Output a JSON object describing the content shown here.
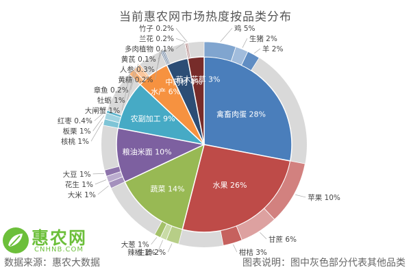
{
  "chart_data": {
    "type": "pie",
    "title": "当前惠农网市场热度按品类分布",
    "inner_ring": [
      {
        "label": "禽畜肉蛋 28%",
        "name": "禽畜肉蛋",
        "value": 28,
        "color": "#4a7ebb"
      },
      {
        "label": "水果 26%",
        "name": "水果",
        "value": 26,
        "color": "#be4b48"
      },
      {
        "label": "蔬菜 14%",
        "name": "蔬菜",
        "value": 14,
        "color": "#98b954"
      },
      {
        "label": "粮油米面 10%",
        "name": "粮油米面",
        "value": 10,
        "color": "#7d60a0"
      },
      {
        "label": "农副加工 9%",
        "name": "农副加工",
        "value": 9,
        "color": "#46aac5"
      },
      {
        "label": "水产 6%",
        "name": "水产",
        "value": 6,
        "color": "#f69240"
      },
      {
        "label": "中药材 4%",
        "name": "中药材",
        "value": 4,
        "color": "#2c4d75"
      },
      {
        "label": "苗木花草 3%",
        "name": "苗木花草",
        "value": 3,
        "color": "#772c2a"
      }
    ],
    "outer_ring": [
      {
        "label": "多肉植物 0.1%",
        "parent": "苗木花草",
        "value": 0.1
      },
      {
        "label": "鸡 5%",
        "parent": "禽畜肉蛋",
        "value": 5
      },
      {
        "label": "生猪 2%",
        "parent": "禽畜肉蛋",
        "value": 2
      },
      {
        "label": "羊 2%",
        "parent": "禽畜肉蛋",
        "value": 2
      },
      {
        "label": "苹果 10%",
        "parent": "水果",
        "value": 10
      },
      {
        "label": "甘蔗 6%",
        "parent": "水果",
        "value": 6
      },
      {
        "label": "柑桔 3%",
        "parent": "水果",
        "value": 3
      },
      {
        "label": "生姜 2%",
        "parent": "蔬菜",
        "value": 2
      },
      {
        "label": "辣椒 1%",
        "parent": "蔬菜",
        "value": 1
      },
      {
        "label": "大葱 1%",
        "parent": "蔬菜",
        "value": 1
      },
      {
        "label": "大米 1%",
        "parent": "粮油米面",
        "value": 1
      },
      {
        "label": "花生 1%",
        "parent": "粮油米面",
        "value": 1
      },
      {
        "label": "大豆 1%",
        "parent": "粮油米面",
        "value": 1
      },
      {
        "label": "核桃 1%",
        "parent": "农副加工",
        "value": 1
      },
      {
        "label": "板栗 1%",
        "parent": "农副加工",
        "value": 1
      },
      {
        "label": "红枣 0.4%",
        "parent": "农副加工",
        "value": 0.4
      },
      {
        "label": "大闸蟹 1%",
        "parent": "水产",
        "value": 1
      },
      {
        "label": "牡蛎 1%",
        "parent": "水产",
        "value": 1
      },
      {
        "label": "章鱼 0.2%",
        "parent": "水产",
        "value": 0.2
      },
      {
        "label": "黄精 0.2%",
        "parent": "中药材",
        "value": 0.2
      },
      {
        "label": "人参 0.3%",
        "parent": "中药材",
        "value": 0.3
      },
      {
        "label": "黄芪 0.1%",
        "parent": "中药材",
        "value": 0.1
      },
      {
        "label": "兰花 0.2%",
        "parent": "苗木花草",
        "value": 0.2
      },
      {
        "label": "竹子 0.2%",
        "parent": "苗木花草",
        "value": 0.2
      }
    ],
    "other_color": "#d9d9d9"
  },
  "footer": {
    "source": "数据来源：惠农大数据",
    "note": "图表说明：图中灰色部分代表其他品类"
  },
  "logo": {
    "text": "惠农网",
    "url": "CNHNB.COM"
  }
}
